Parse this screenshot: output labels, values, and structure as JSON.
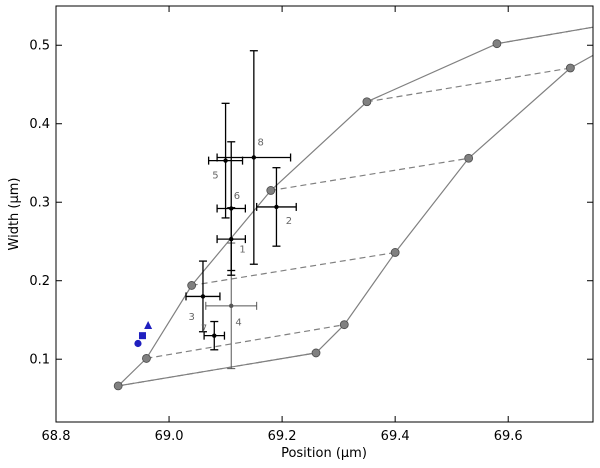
{
  "chart_data": {
    "type": "scatter",
    "title": "",
    "xlabel": "Position (μm)",
    "ylabel": "Width (μm)",
    "xlim": [
      68.8,
      69.75
    ],
    "ylim": [
      0.02,
      0.55
    ],
    "xticks": [
      68.8,
      69.0,
      69.2,
      69.4,
      69.6
    ],
    "xtick_labels": [
      "68.8",
      "69.0",
      "69.2",
      "69.4",
      "69.6"
    ],
    "yticks": [
      0.1,
      0.2,
      0.3,
      0.4,
      0.5
    ],
    "ytick_labels": [
      "0.1",
      "0.2",
      "0.3",
      "0.4",
      "0.5"
    ],
    "grid": false,
    "colors": {
      "model": "#808080",
      "marker_fill": "#808080",
      "errorbar": "#000000",
      "errorbar_light": "#555555",
      "blue": "#1f1fbf",
      "point_label": "#666666"
    },
    "model_curves": [
      {
        "style": "solid",
        "points": [
          [
            68.91,
            0.066
          ],
          [
            68.96,
            0.101
          ],
          [
            69.04,
            0.194
          ],
          [
            69.18,
            0.315
          ],
          [
            69.35,
            0.428
          ],
          [
            69.58,
            0.502
          ],
          [
            69.75,
            0.523
          ]
        ]
      },
      {
        "style": "solid",
        "points": [
          [
            68.91,
            0.066
          ],
          [
            69.26,
            0.108
          ],
          [
            69.31,
            0.144
          ],
          [
            69.4,
            0.236
          ],
          [
            69.53,
            0.356
          ],
          [
            69.71,
            0.471
          ],
          [
            69.75,
            0.487
          ]
        ]
      },
      {
        "style": "dashed",
        "points": [
          [
            68.91,
            0.066
          ],
          [
            69.26,
            0.108
          ]
        ]
      },
      {
        "style": "dashed",
        "points": [
          [
            68.96,
            0.101
          ],
          [
            69.31,
            0.144
          ]
        ]
      },
      {
        "style": "dashed",
        "points": [
          [
            69.04,
            0.194
          ],
          [
            69.4,
            0.236
          ]
        ]
      },
      {
        "style": "dashed",
        "points": [
          [
            69.18,
            0.315
          ],
          [
            69.53,
            0.356
          ]
        ]
      },
      {
        "style": "dashed",
        "points": [
          [
            69.35,
            0.428
          ],
          [
            69.71,
            0.471
          ]
        ]
      },
      {
        "style": "dashed",
        "points": [
          [
            69.58,
            0.502
          ],
          [
            69.75,
            0.523
          ]
        ]
      }
    ],
    "model_markers": [
      {
        "x": 68.91,
        "y": 0.066
      },
      {
        "x": 68.96,
        "y": 0.101
      },
      {
        "x": 69.04,
        "y": 0.194
      },
      {
        "x": 69.18,
        "y": 0.315
      },
      {
        "x": 69.35,
        "y": 0.428
      },
      {
        "x": 69.58,
        "y": 0.502
      },
      {
        "x": 69.26,
        "y": 0.108
      },
      {
        "x": 69.31,
        "y": 0.144
      },
      {
        "x": 69.4,
        "y": 0.236
      },
      {
        "x": 69.53,
        "y": 0.356
      },
      {
        "x": 69.71,
        "y": 0.471
      }
    ],
    "measurements": [
      {
        "label": "1",
        "x": 69.11,
        "y": 0.253,
        "xerr": 0.025,
        "yerr": 0.04,
        "label_dx": 0.02,
        "label_dy": -0.017
      },
      {
        "label": "2",
        "x": 69.19,
        "y": 0.294,
        "xerr": 0.035,
        "yerr": 0.05,
        "label_dx": 0.022,
        "label_dy": -0.022
      },
      {
        "label": "3",
        "x": 69.06,
        "y": 0.18,
        "xerr": 0.03,
        "yerr": 0.045,
        "label_dx": -0.02,
        "label_dy": -0.03
      },
      {
        "label": "4",
        "x": 69.11,
        "y": 0.168,
        "xerr": 0.045,
        "yerr": 0.08,
        "label_dx": 0.013,
        "label_dy": -0.025,
        "light": true
      },
      {
        "label": "5",
        "x": 69.1,
        "y": 0.353,
        "xerr": 0.03,
        "yerr": 0.073,
        "label_dx": -0.018,
        "label_dy": -0.023
      },
      {
        "label": "6",
        "x": 69.11,
        "y": 0.292,
        "xerr": 0.025,
        "yerr": 0.085,
        "label_dx": 0.01,
        "label_dy": 0.012
      },
      {
        "label": "7",
        "x": 69.08,
        "y": 0.13,
        "xerr": 0.018,
        "yerr": 0.018,
        "label_dx": -0.018,
        "label_dy": 0.005
      },
      {
        "label": "8",
        "x": 69.15,
        "y": 0.357,
        "xerr": 0.065,
        "yerr": 0.136,
        "label_dx": 0.012,
        "label_dy": 0.015
      }
    ],
    "blue_markers": [
      {
        "shape": "circle",
        "x": 68.945,
        "y": 0.12
      },
      {
        "shape": "square",
        "x": 68.953,
        "y": 0.13
      },
      {
        "shape": "triangle",
        "x": 68.963,
        "y": 0.143
      }
    ]
  }
}
